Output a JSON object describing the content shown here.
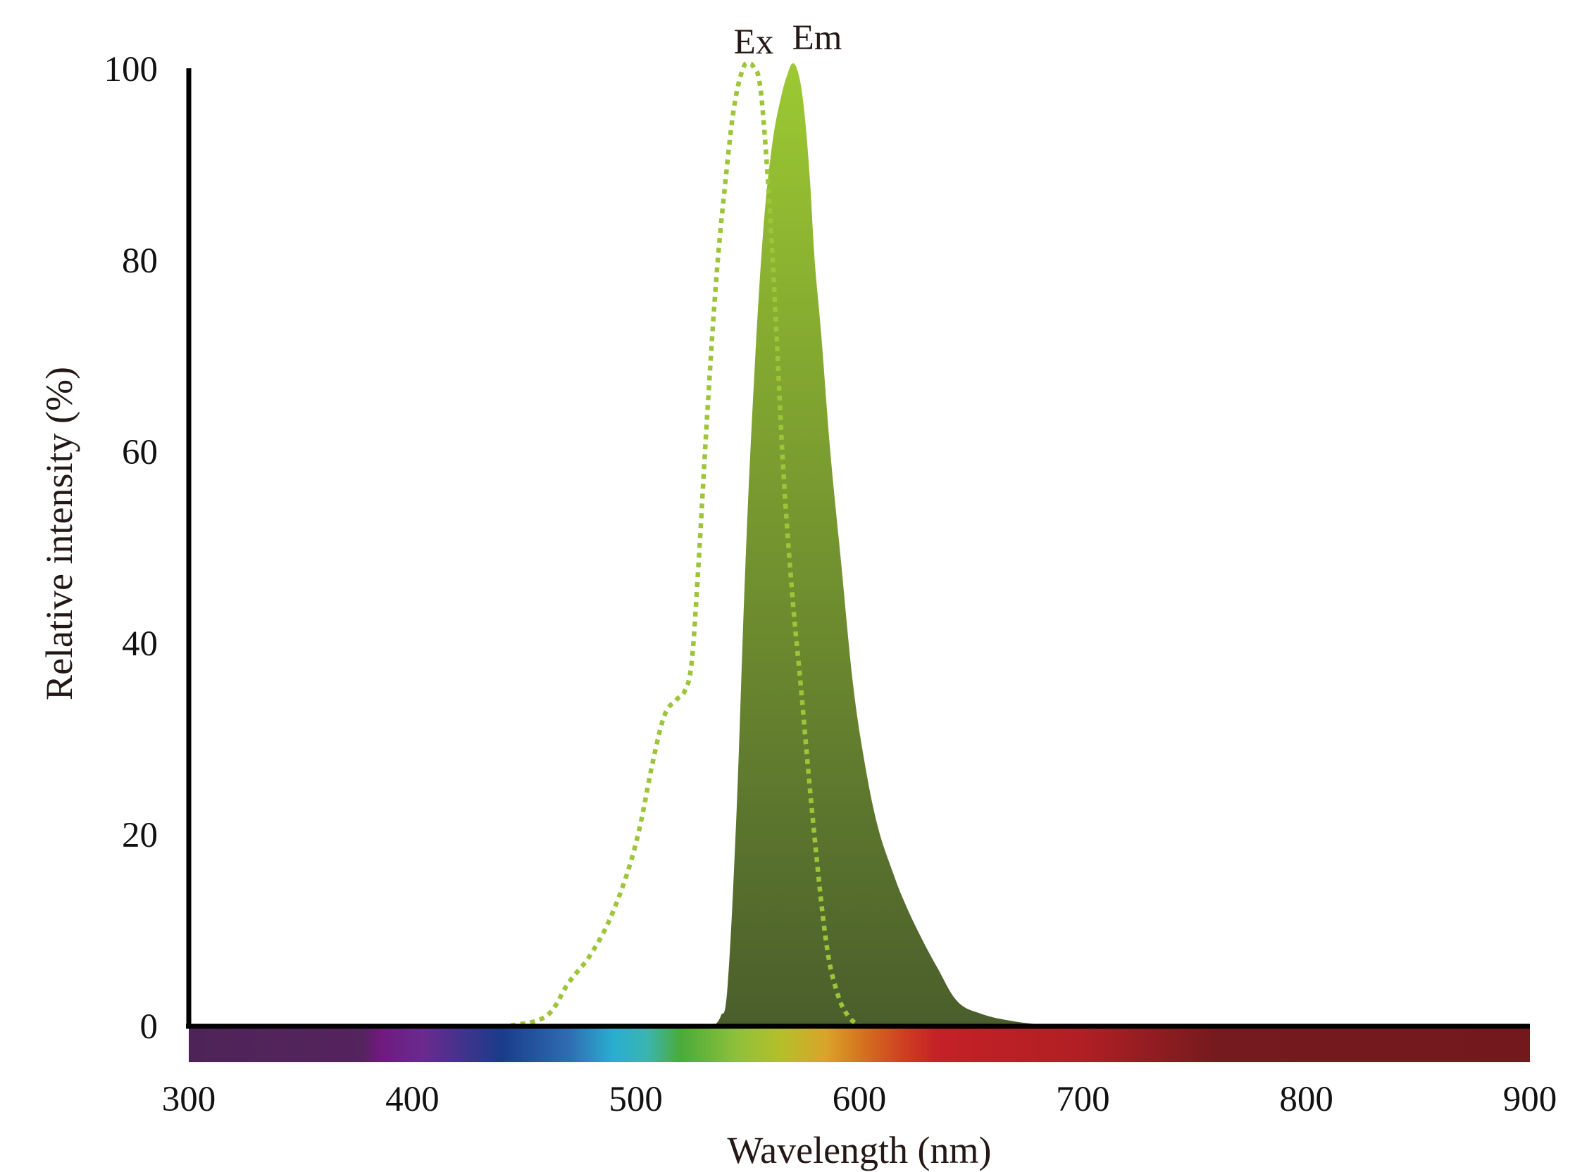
{
  "chart_data": {
    "type": "area",
    "xlabel": "Wavelength (nm)",
    "ylabel": "Relative intensity (%)",
    "xlim": [
      300,
      900
    ],
    "ylim": [
      0,
      100
    ],
    "x_ticks": [
      "300",
      "400",
      "500",
      "600",
      "700",
      "800",
      "900"
    ],
    "y_ticks": [
      "0",
      "20",
      "40",
      "60",
      "80",
      "100"
    ],
    "grid": false,
    "legend": "none",
    "colorbar": {
      "under_axis": "x",
      "stops": [
        {
          "nm": 300,
          "color": "#4e2458"
        },
        {
          "nm": 378,
          "color": "#55235e"
        },
        {
          "nm": 385,
          "color": "#6e1a7c"
        },
        {
          "nm": 405,
          "color": "#6a2a8e"
        },
        {
          "nm": 440,
          "color": "#1a3c8a"
        },
        {
          "nm": 470,
          "color": "#2f6cb1"
        },
        {
          "nm": 490,
          "color": "#2aaed0"
        },
        {
          "nm": 505,
          "color": "#3ab5b0"
        },
        {
          "nm": 520,
          "color": "#4aab3a"
        },
        {
          "nm": 545,
          "color": "#8ec03a"
        },
        {
          "nm": 565,
          "color": "#b5bf2a"
        },
        {
          "nm": 585,
          "color": "#d9a42a"
        },
        {
          "nm": 600,
          "color": "#d5761e"
        },
        {
          "nm": 620,
          "color": "#cf3e22"
        },
        {
          "nm": 635,
          "color": "#c42127"
        },
        {
          "nm": 700,
          "color": "#b01f24"
        },
        {
          "nm": 760,
          "color": "#751a1e"
        },
        {
          "nm": 900,
          "color": "#73191d"
        }
      ]
    },
    "series": [
      {
        "name": "Ex",
        "style": "dotted",
        "color": "#9dc53a",
        "x": [
          444,
          460,
          470,
          480,
          490,
          500,
          508,
          513,
          518,
          522,
          525,
          528,
          532,
          536,
          540,
          544,
          548,
          551,
          553,
          555,
          557,
          560,
          563,
          566,
          570,
          574,
          579,
          585,
          590,
          595,
          600
        ],
        "y": [
          0,
          1,
          4.5,
          7.5,
          12,
          19,
          28,
          32.5,
          34,
          35,
          38,
          48,
          64,
          78,
          88,
          96,
          100,
          100.5,
          100,
          99,
          95,
          85,
          72,
          58,
          45,
          35,
          22,
          9,
          3.5,
          1,
          0
        ]
      },
      {
        "name": "Em",
        "style": "filled",
        "gradient": [
          "#9dc932",
          "#4a5e2c"
        ],
        "x": [
          535,
          538,
          541,
          545,
          549,
          553,
          557,
          561,
          565,
          568,
          570,
          572,
          574,
          576,
          578,
          580,
          583,
          587,
          592,
          597,
          602,
          608,
          615,
          620,
          627,
          635,
          644,
          655,
          668,
          682,
          695
        ],
        "y": [
          0,
          1,
          4,
          22,
          48,
          68,
          83,
          92,
          97,
          99.5,
          100.5,
          100,
          98,
          94,
          88,
          80,
          72,
          60,
          48,
          36,
          28,
          21,
          16,
          13,
          9.5,
          6,
          2.5,
          1.2,
          0.5,
          0.1,
          0
        ]
      }
    ]
  }
}
